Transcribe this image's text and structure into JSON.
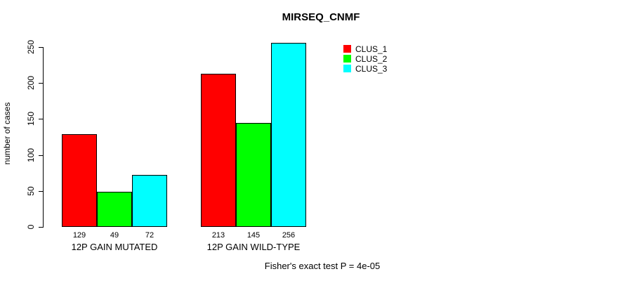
{
  "chart_data": {
    "type": "bar",
    "title": "MIRSEQ_CNMF",
    "xlabel": "",
    "ylabel": "number of cases",
    "categories": [
      "12P GAIN MUTATED",
      "12P GAIN WILD-TYPE"
    ],
    "series": [
      {
        "name": "CLUS_1",
        "color": "#ff0000",
        "values": [
          129,
          213
        ]
      },
      {
        "name": "CLUS_2",
        "color": "#00ff00",
        "values": [
          49,
          145
        ]
      },
      {
        "name": "CLUS_3",
        "color": "#00ffff",
        "values": [
          72,
          256
        ]
      }
    ],
    "y_ticks": [
      0,
      50,
      100,
      150,
      200,
      250
    ],
    "ylim": [
      0,
      250
    ],
    "bar_value_labels_shown": true,
    "legend_position": "top-right",
    "grid": false,
    "footnote": "Fisher's exact test P = 4e-05"
  },
  "colors": {
    "background": "#ffffff",
    "axis": "#000000",
    "text": "#000000"
  }
}
